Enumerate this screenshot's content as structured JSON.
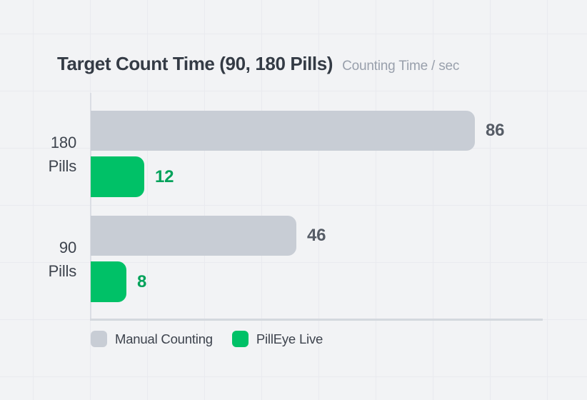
{
  "header": {
    "title": "Target Count Time (90, 180 Pills)",
    "subtitle": "Counting Time / sec"
  },
  "chart_data": {
    "type": "bar",
    "orientation": "horizontal",
    "title": "Target Count Time (90, 180 Pills)",
    "value_unit": "Counting Time / sec",
    "categories": [
      "180 Pills",
      "90 Pills"
    ],
    "category_lines": [
      [
        "180",
        "Pills"
      ],
      [
        "90",
        "Pills"
      ]
    ],
    "series": [
      {
        "name": "Manual Counting",
        "color": "#c8cdd5",
        "values": [
          86,
          46
        ]
      },
      {
        "name": "PillEye Live",
        "color": "#00c167",
        "values": [
          12,
          8
        ]
      }
    ],
    "xlim": [
      0,
      86
    ],
    "grid": true,
    "legend_position": "bottom",
    "value_labels": true
  },
  "legend": {
    "items": [
      {
        "label": "Manual Counting",
        "color": "#c8cdd5"
      },
      {
        "label": "PillEye Live",
        "color": "#00c167"
      }
    ]
  },
  "colors": {
    "background": "#f2f3f5",
    "manual_bar": "#c8cdd5",
    "pilleye_bar": "#00c167",
    "manual_value_text": "#565c66",
    "pilleye_value_text": "#00a25a",
    "title_text": "#343b45",
    "subtitle_text": "#99a0ac",
    "axis": "#d5d9df"
  }
}
